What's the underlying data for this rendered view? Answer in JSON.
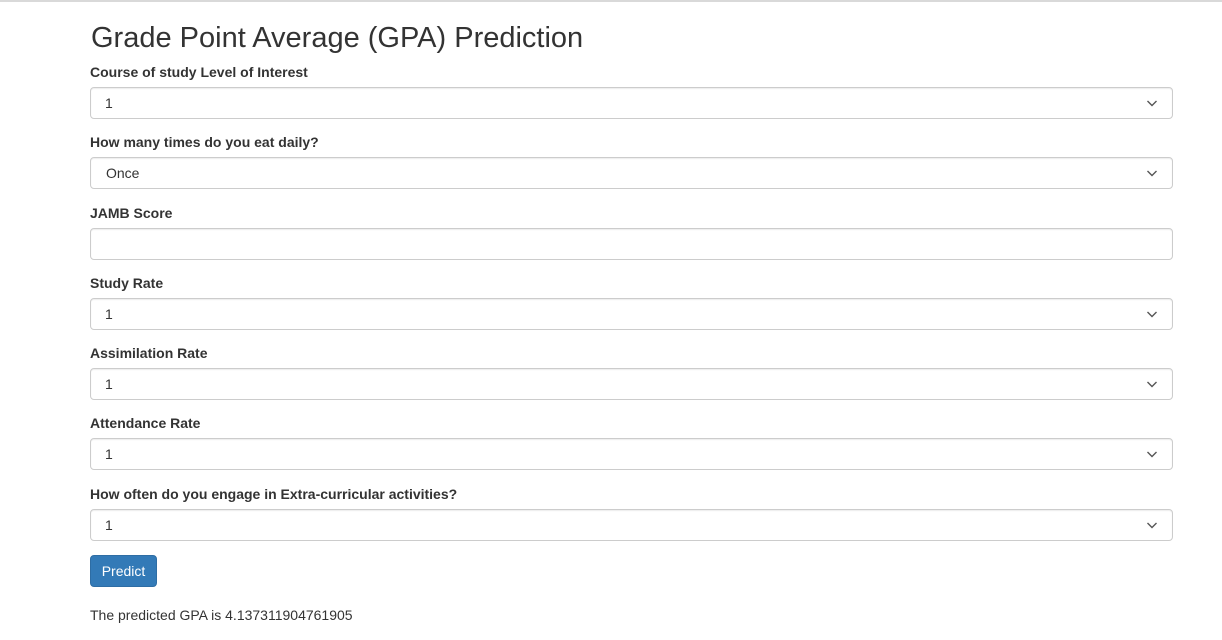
{
  "page": {
    "title": "Grade Point Average (GPA) Prediction"
  },
  "form": {
    "course_interest": {
      "label": "Course of study Level of Interest",
      "value": "1"
    },
    "eat_daily": {
      "label": "How many times do you eat daily?",
      "value": "Once"
    },
    "jamb_score": {
      "label": "JAMB Score",
      "value": ""
    },
    "study_rate": {
      "label": "Study Rate",
      "value": "1"
    },
    "assimilation_rate": {
      "label": "Assimilation Rate",
      "value": "1"
    },
    "attendance_rate": {
      "label": "Attendance Rate",
      "value": "1"
    },
    "extracurricular": {
      "label": "How often do you engage in Extra-curricular activities?",
      "value": "1"
    },
    "predict_label": "Predict"
  },
  "result": {
    "text": "The predicted GPA is 4.137311904761905"
  },
  "icons": {
    "dropdown": "chevron-down-icon"
  },
  "colors": {
    "primary_button": "#337ab7",
    "border": "#cccccc",
    "text": "#333333"
  }
}
